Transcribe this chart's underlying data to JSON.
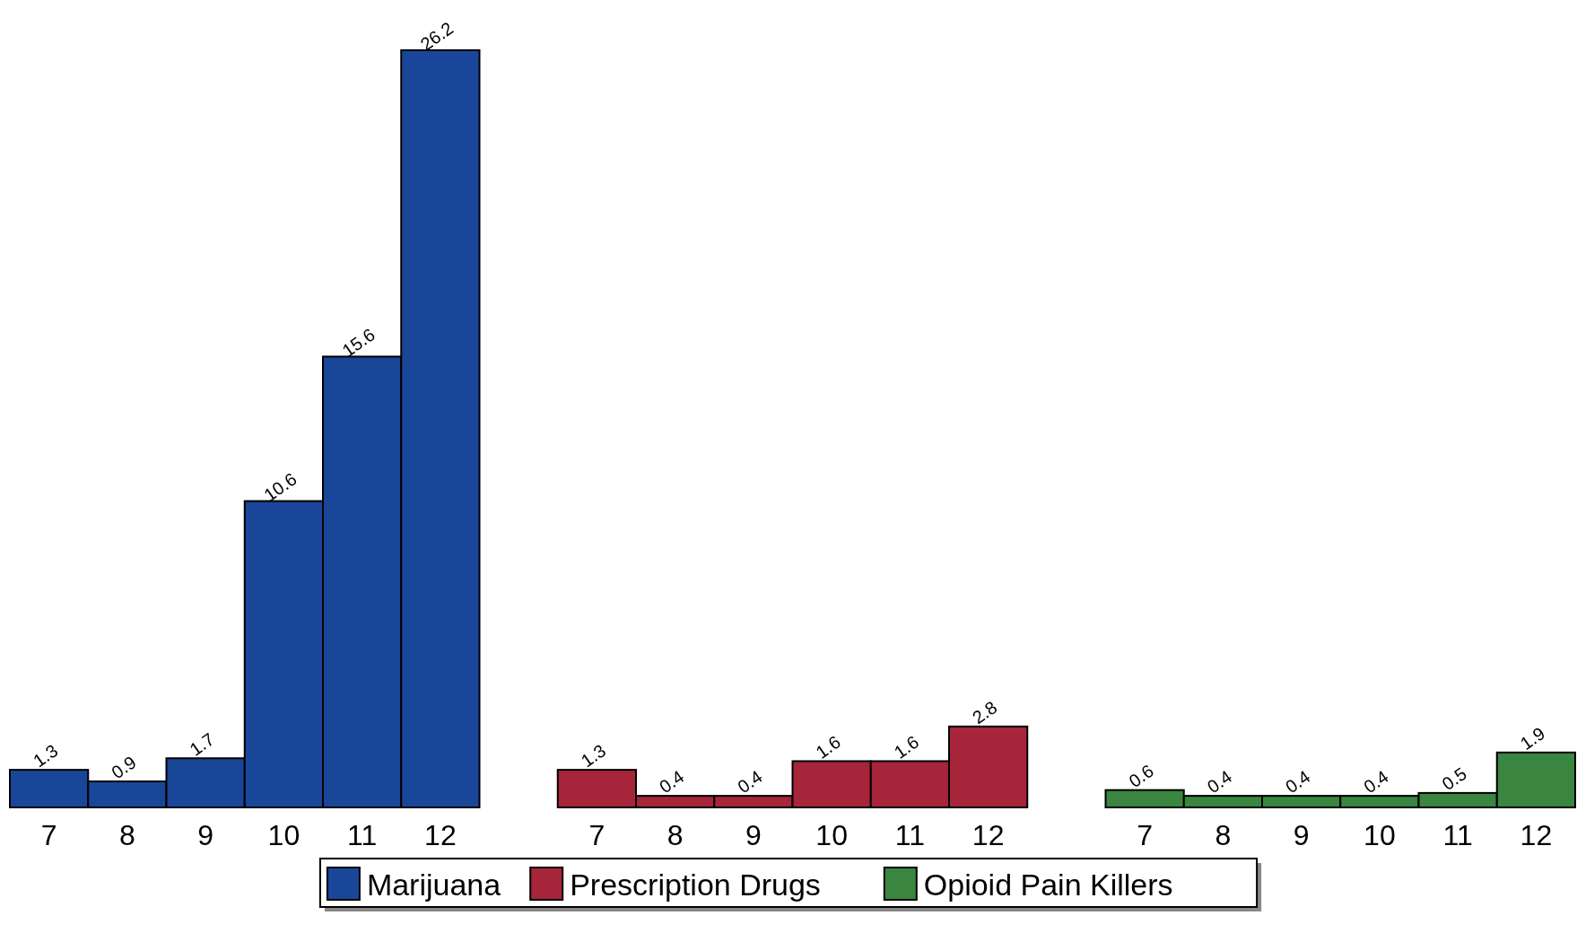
{
  "chart_data": {
    "type": "bar",
    "categories": [
      "7",
      "8",
      "9",
      "10",
      "11",
      "12",
      null,
      "7",
      "8",
      "9",
      "10",
      "11",
      "12",
      null,
      "7",
      "8",
      "9",
      "10",
      "11",
      "12"
    ],
    "series": [
      {
        "name": "Marijuana",
        "color": "#1a4699",
        "values": [
          1.3,
          0.9,
          1.7,
          10.6,
          15.6,
          26.2,
          null,
          null,
          null,
          null,
          null,
          null,
          null,
          null,
          null,
          null,
          null,
          null,
          null,
          null
        ]
      },
      {
        "name": "Prescription Drugs",
        "color": "#a6253a",
        "values": [
          null,
          null,
          null,
          null,
          null,
          null,
          null,
          1.3,
          0.4,
          0.4,
          1.6,
          1.6,
          2.8,
          null,
          null,
          null,
          null,
          null,
          null,
          null
        ]
      },
      {
        "name": "Opioid Pain Killers",
        "color": "#3a8540",
        "values": [
          null,
          null,
          null,
          null,
          null,
          null,
          null,
          null,
          null,
          null,
          null,
          null,
          null,
          null,
          0.6,
          0.4,
          0.4,
          0.4,
          0.5,
          1.9
        ]
      }
    ],
    "data_labels": true,
    "legend": "bottom"
  }
}
